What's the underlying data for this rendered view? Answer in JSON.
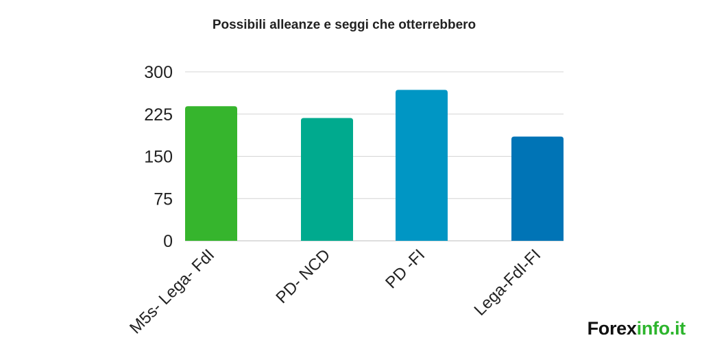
{
  "chart_data": {
    "type": "bar",
    "title": "Possibili alleanze e seggi che otterrebbero",
    "categories": [
      "M5s- Lega- FdI",
      "PD- NCD",
      "PD -FI",
      "Lega-FdI-FI"
    ],
    "values": [
      239,
      218,
      268,
      185
    ],
    "colors": [
      "#36b52d",
      "#00aa8e",
      "#0096c4",
      "#0074b6"
    ],
    "ylim": [
      0,
      300
    ],
    "yticks": [
      "0",
      "75",
      "150",
      "225",
      "300"
    ],
    "ytick_values": [
      0,
      75,
      150,
      225,
      300
    ],
    "grid": true,
    "legend": "none"
  },
  "branding": {
    "logo_part1": "Forex",
    "logo_part2": "info.it"
  }
}
